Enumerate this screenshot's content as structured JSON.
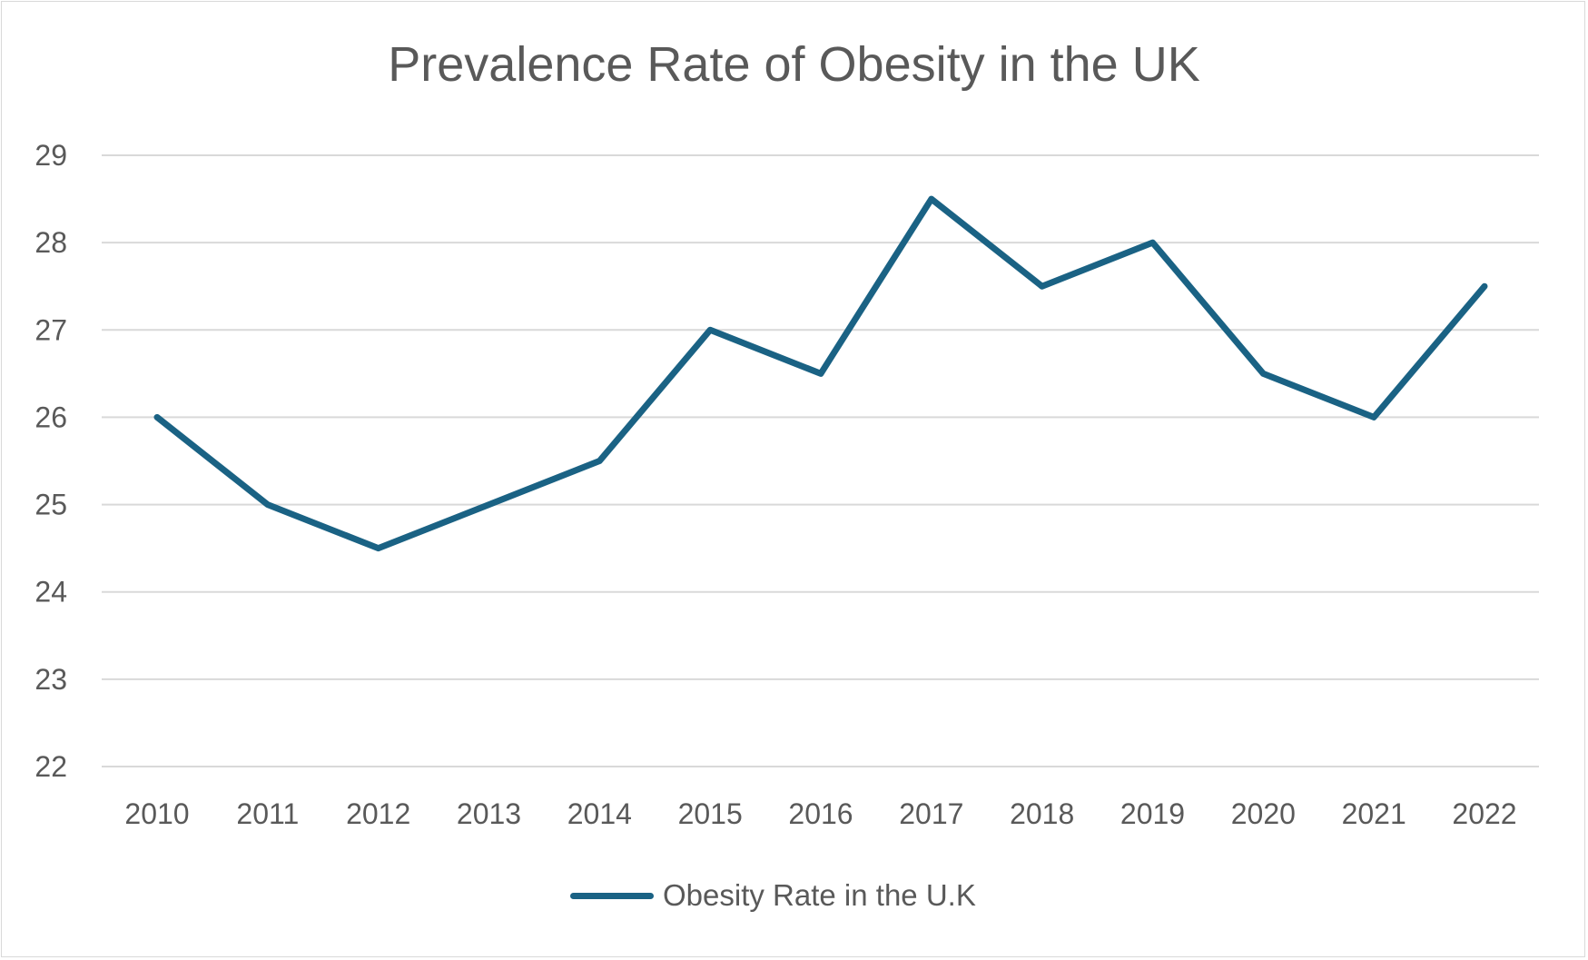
{
  "chart_data": {
    "type": "line",
    "title": "Prevalence Rate of Obesity in the UK",
    "xlabel": "",
    "ylabel": "",
    "categories": [
      "2010",
      "2011",
      "2012",
      "2013",
      "2014",
      "2015",
      "2016",
      "2017",
      "2018",
      "2019",
      "2020",
      "2021",
      "2022"
    ],
    "series": [
      {
        "name": "Obesity Rate in the U.K",
        "values": [
          26,
          25,
          24.5,
          25,
          25.5,
          27,
          26.5,
          28.5,
          27.5,
          28,
          26.5,
          26,
          27.5
        ],
        "color": "#1a6284"
      }
    ],
    "ylim": [
      22,
      29
    ],
    "yticks": [
      22,
      23,
      24,
      25,
      26,
      27,
      28,
      29
    ],
    "grid": true,
    "legend": "bottom"
  }
}
